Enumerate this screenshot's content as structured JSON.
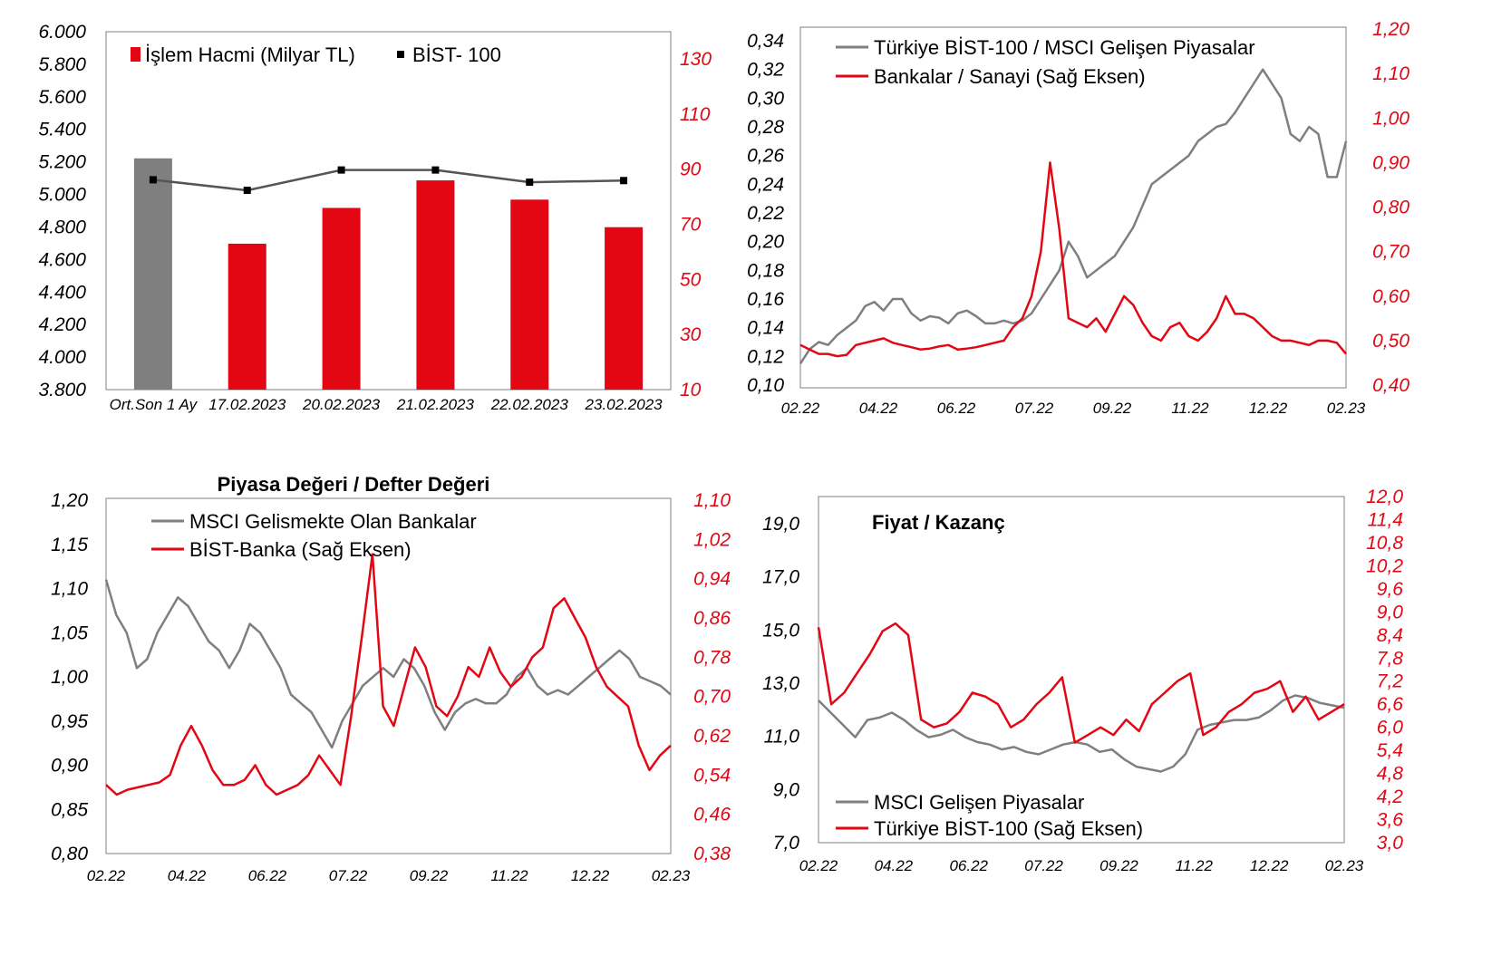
{
  "colors": {
    "gray": "#7f7f7f",
    "red": "#e30613",
    "axis_red": "#e30613",
    "frame": "#808080",
    "black": "#000000"
  },
  "chart_data": [
    {
      "type": "bar",
      "title": "",
      "categories": [
        "Ort.Son 1 Ay",
        "17.02.2023",
        "20.02.2023",
        "21.02.2023",
        "22.02.2023",
        "23.02.2023"
      ],
      "series": [
        {
          "name": "İşlem Hacmi (Milyar TL)",
          "axis": "right",
          "values": [
            94,
            63,
            76,
            86,
            79,
            69
          ],
          "colors": [
            "#7f7f7f",
            "#e30613",
            "#e30613",
            "#e30613",
            "#e30613",
            "#e30613"
          ]
        },
        {
          "name": "BİST- 100",
          "axis": "left",
          "type": "line",
          "values": [
            5090,
            5025,
            5150,
            5150,
            5075,
            5085
          ]
        }
      ],
      "y_left": {
        "ylim": [
          3800,
          6000
        ],
        "ticks": [
          "6.000",
          "5.800",
          "5.600",
          "5.400",
          "5.200",
          "5.000",
          "4.800",
          "4.600",
          "4.400",
          "4.200",
          "4.000",
          "3.800"
        ]
      },
      "y_right": {
        "ylim": [
          10,
          140
        ],
        "ticks": [
          "130",
          "110",
          "90",
          "70",
          "50",
          "30",
          "10"
        ]
      },
      "legend": "top-left"
    },
    {
      "type": "line",
      "title": "",
      "x_ticks": [
        "02.22",
        "04.22",
        "06.22",
        "07.22",
        "09.22",
        "11.22",
        "12.22",
        "02.23"
      ],
      "series": [
        {
          "name": "Türkiye BİST-100 / MSCI Gelişen Piyasalar",
          "axis": "left",
          "color": "#7f7f7f",
          "values": [
            0.115,
            0.125,
            0.13,
            0.128,
            0.135,
            0.14,
            0.145,
            0.155,
            0.158,
            0.152,
            0.16,
            0.16,
            0.15,
            0.145,
            0.148,
            0.147,
            0.143,
            0.15,
            0.152,
            0.148,
            0.143,
            0.143,
            0.145,
            0.143,
            0.145,
            0.15,
            0.16,
            0.17,
            0.18,
            0.2,
            0.19,
            0.175,
            0.18,
            0.185,
            0.19,
            0.2,
            0.21,
            0.225,
            0.24,
            0.245,
            0.25,
            0.255,
            0.26,
            0.27,
            0.275,
            0.28,
            0.282,
            0.29,
            0.3,
            0.31,
            0.32,
            0.31,
            0.3,
            0.275,
            0.27,
            0.28,
            0.275,
            0.245,
            0.245,
            0.27
          ]
        },
        {
          "name": "Bankalar / Sanayi (Sağ Eksen)",
          "axis": "right",
          "color": "#e30613",
          "values": [
            0.49,
            0.48,
            0.47,
            0.47,
            0.465,
            0.468,
            0.49,
            0.495,
            0.5,
            0.505,
            0.495,
            0.49,
            0.485,
            0.48,
            0.482,
            0.487,
            0.49,
            0.48,
            0.482,
            0.485,
            0.49,
            0.495,
            0.5,
            0.53,
            0.55,
            0.6,
            0.7,
            0.9,
            0.75,
            0.55,
            0.54,
            0.53,
            0.55,
            0.52,
            0.56,
            0.6,
            0.58,
            0.54,
            0.51,
            0.5,
            0.53,
            0.54,
            0.51,
            0.5,
            0.52,
            0.55,
            0.6,
            0.56,
            0.56,
            0.55,
            0.53,
            0.51,
            0.5,
            0.5,
            0.495,
            0.49,
            0.5,
            0.5,
            0.495,
            0.47
          ]
        }
      ],
      "y_left": {
        "ylim": [
          0.1,
          0.34
        ],
        "ticks": [
          "0,34",
          "0,32",
          "0,30",
          "0,28",
          "0,26",
          "0,24",
          "0,22",
          "0,20",
          "0,18",
          "0,16",
          "0,14",
          "0,12",
          "0,10"
        ]
      },
      "y_right": {
        "ylim": [
          0.4,
          1.2
        ],
        "ticks": [
          "1,20",
          "1,10",
          "1,00",
          "0,90",
          "0,80",
          "0,70",
          "0,60",
          "0,50",
          "0,40"
        ]
      },
      "legend": "top-left"
    },
    {
      "type": "line",
      "title": "Piyasa Değeri / Defter Değeri",
      "x_ticks": [
        "02.22",
        "04.22",
        "06.22",
        "07.22",
        "09.22",
        "11.22",
        "12.22",
        "02.23"
      ],
      "series": [
        {
          "name": "MSCI Gelismekte Olan Bankalar",
          "axis": "left",
          "color": "#7f7f7f",
          "values": [
            1.11,
            1.07,
            1.05,
            1.01,
            1.02,
            1.05,
            1.07,
            1.09,
            1.08,
            1.06,
            1.04,
            1.03,
            1.01,
            1.03,
            1.06,
            1.05,
            1.03,
            1.01,
            0.98,
            0.97,
            0.96,
            0.94,
            0.92,
            0.95,
            0.97,
            0.99,
            1.0,
            1.01,
            1.0,
            1.02,
            1.01,
            0.99,
            0.96,
            0.94,
            0.96,
            0.97,
            0.975,
            0.97,
            0.97,
            0.98,
            1.0,
            1.01,
            0.99,
            0.98,
            0.985,
            0.98,
            0.99,
            1.0,
            1.01,
            1.02,
            1.03,
            1.02,
            1.0,
            0.995,
            0.99,
            0.98
          ]
        },
        {
          "name": "BİST-Banka (Sağ Eksen)",
          "axis": "right",
          "color": "#e30613",
          "values": [
            0.52,
            0.5,
            0.51,
            0.515,
            0.52,
            0.525,
            0.54,
            0.6,
            0.64,
            0.6,
            0.55,
            0.52,
            0.52,
            0.53,
            0.56,
            0.52,
            0.5,
            0.51,
            0.52,
            0.54,
            0.58,
            0.55,
            0.52,
            0.66,
            0.82,
            0.99,
            0.68,
            0.64,
            0.72,
            0.8,
            0.76,
            0.68,
            0.66,
            0.7,
            0.76,
            0.74,
            0.8,
            0.75,
            0.72,
            0.74,
            0.78,
            0.8,
            0.88,
            0.9,
            0.86,
            0.82,
            0.76,
            0.72,
            0.7,
            0.68,
            0.6,
            0.55,
            0.58,
            0.6
          ]
        }
      ],
      "y_left": {
        "ylim": [
          0.8,
          1.2
        ],
        "ticks": [
          "1,20",
          "1,15",
          "1,10",
          "1,05",
          "1,00",
          "0,95",
          "0,90",
          "0,85",
          "0,80"
        ]
      },
      "y_right": {
        "ylim": [
          0.38,
          1.1
        ],
        "ticks": [
          "1,10",
          "1,02",
          "0,94",
          "0,86",
          "0,78",
          "0,70",
          "0,62",
          "0,54",
          "0,46",
          "0,38"
        ]
      },
      "legend": "top-left"
    },
    {
      "type": "line",
      "title": "Fiyat / Kazanç",
      "x_ticks": [
        "02.22",
        "04.22",
        "06.22",
        "07.22",
        "09.22",
        "11.22",
        "12.22",
        "02.23"
      ],
      "series": [
        {
          "name": "MSCI Gelişen Piyasalar",
          "axis": "left",
          "color": "#7f7f7f",
          "values": [
            12.8,
            12.3,
            11.8,
            11.3,
            12.0,
            12.1,
            12.3,
            12.0,
            11.6,
            11.3,
            11.4,
            11.6,
            11.3,
            11.1,
            11.0,
            10.8,
            10.9,
            10.7,
            10.6,
            10.8,
            11.0,
            11.1,
            11.0,
            10.7,
            10.8,
            10.4,
            10.1,
            10.0,
            9.9,
            10.1,
            10.6,
            11.6,
            11.8,
            11.9,
            12.0,
            12.0,
            12.1,
            12.4,
            12.8,
            13.0,
            12.9,
            12.7,
            12.6,
            12.5
          ]
        },
        {
          "name": "Türkiye BİST-100 (Sağ Eksen)",
          "axis": "right",
          "color": "#e30613",
          "values": [
            8.6,
            6.6,
            6.9,
            7.4,
            7.9,
            8.5,
            8.7,
            8.4,
            6.2,
            6.0,
            6.1,
            6.4,
            6.9,
            6.8,
            6.6,
            6.0,
            6.2,
            6.6,
            6.9,
            7.3,
            5.6,
            5.8,
            6.0,
            5.8,
            6.2,
            5.9,
            6.6,
            6.9,
            7.2,
            7.4,
            5.8,
            6.0,
            6.4,
            6.6,
            6.9,
            7.0,
            7.2,
            6.4,
            6.8,
            6.2,
            6.4,
            6.6
          ]
        }
      ],
      "y_left": {
        "ylim": [
          7.0,
          20.0
        ],
        "ticks": [
          "19,0",
          "17,0",
          "15,0",
          "13,0",
          "11,0",
          "9,0",
          "7,0"
        ]
      },
      "y_right": {
        "ylim": [
          3.0,
          12.0
        ],
        "ticks": [
          "12,0",
          "11,4",
          "10,8",
          "10,2",
          "9,6",
          "9,0",
          "8,4",
          "7,8",
          "7,2",
          "6,6",
          "6,0",
          "5,4",
          "4,8",
          "4,2",
          "3,6",
          "3,0"
        ]
      },
      "legend": "bottom-left"
    }
  ]
}
